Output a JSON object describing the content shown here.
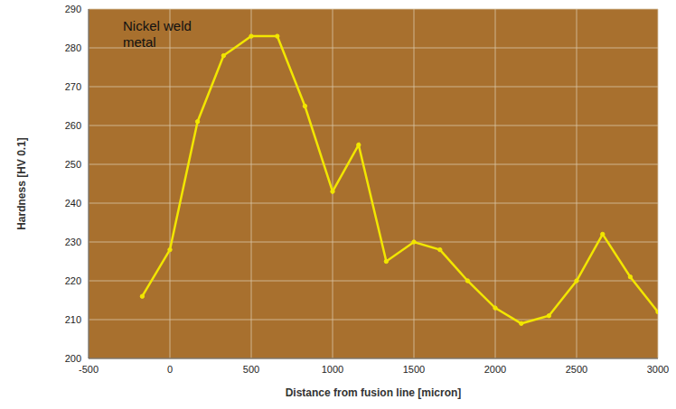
{
  "chart_data": {
    "type": "line",
    "x_label": "Distance from fusion line [micron]",
    "y_label": "Hardness [HV 0.1]",
    "annotations": [
      "Nickel weld metal"
    ],
    "x": [
      -170,
      0,
      170,
      330,
      500,
      660,
      830,
      1000,
      1160,
      1330,
      1500,
      1660,
      1830,
      2000,
      2160,
      2330,
      2500,
      2660,
      2830,
      3000
    ],
    "values": [
      216,
      228,
      261,
      278,
      283,
      283,
      265,
      243,
      255,
      225,
      230,
      228,
      220,
      213,
      209,
      211,
      220,
      232,
      221,
      212
    ],
    "color": "#f2e600",
    "marker": "circle",
    "xlim": [
      -500,
      3000
    ],
    "ylim": [
      200,
      290
    ],
    "xticks": [
      -500,
      0,
      500,
      1000,
      1500,
      2000,
      2500,
      3000
    ],
    "yticks": [
      200,
      210,
      220,
      230,
      240,
      250,
      260,
      270,
      280,
      290
    ],
    "grid": true
  }
}
